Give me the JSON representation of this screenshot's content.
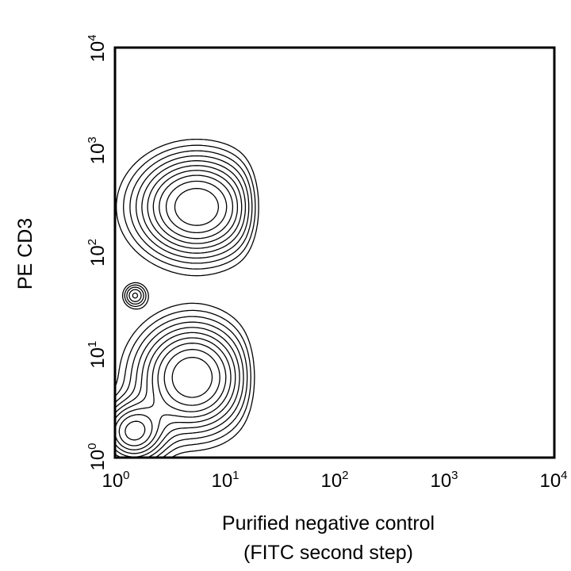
{
  "chart_data": {
    "type": "contour",
    "xlabel_lines": [
      "Purified negative control",
      "(FITC second step)"
    ],
    "ylabel": "PE CD3",
    "x_scale": "log",
    "y_scale": "log",
    "xlim": [
      1,
      10000
    ],
    "ylim": [
      1,
      10000
    ],
    "x_ticks": [
      {
        "base": "10",
        "exp": "0"
      },
      {
        "base": "10",
        "exp": "1"
      },
      {
        "base": "10",
        "exp": "2"
      },
      {
        "base": "10",
        "exp": "3"
      },
      {
        "base": "10",
        "exp": "4"
      }
    ],
    "y_ticks": [
      {
        "base": "10",
        "exp": "0"
      },
      {
        "base": "10",
        "exp": "1"
      },
      {
        "base": "10",
        "exp": "2"
      },
      {
        "base": "10",
        "exp": "3"
      },
      {
        "base": "10",
        "exp": "4"
      }
    ],
    "populations": [
      {
        "center": [
          5.5,
          280
        ]
      },
      {
        "center": [
          5.0,
          6.0
        ]
      },
      {
        "center": [
          1.45,
          1.75
        ]
      },
      {
        "center": [
          1.5,
          38
        ]
      }
    ],
    "grid": false,
    "legend": "none"
  }
}
